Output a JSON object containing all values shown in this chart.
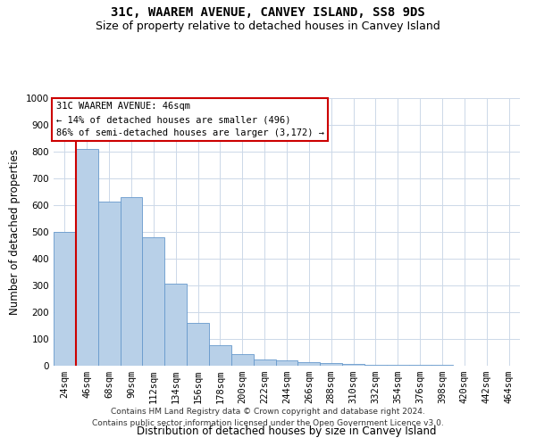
{
  "title": "31C, WAAREM AVENUE, CANVEY ISLAND, SS8 9DS",
  "subtitle": "Size of property relative to detached houses in Canvey Island",
  "xlabel": "Distribution of detached houses by size in Canvey Island",
  "ylabel": "Number of detached properties",
  "footer_line1": "Contains HM Land Registry data © Crown copyright and database right 2024.",
  "footer_line2": "Contains public sector information licensed under the Open Government Licence v3.0.",
  "annotation_title": "31C WAAREM AVENUE: 46sqm",
  "annotation_line2": "← 14% of detached houses are smaller (496)",
  "annotation_line3": "86% of semi-detached houses are larger (3,172) →",
  "bar_categories": [
    "24sqm",
    "46sqm",
    "68sqm",
    "90sqm",
    "112sqm",
    "134sqm",
    "156sqm",
    "178sqm",
    "200sqm",
    "222sqm",
    "244sqm",
    "266sqm",
    "288sqm",
    "310sqm",
    "332sqm",
    "354sqm",
    "376sqm",
    "398sqm",
    "420sqm",
    "442sqm",
    "464sqm"
  ],
  "bar_values": [
    500,
    810,
    615,
    630,
    480,
    308,
    160,
    78,
    42,
    22,
    20,
    15,
    10,
    7,
    5,
    4,
    3,
    2,
    1,
    1,
    1
  ],
  "bar_color": "#b8d0e8",
  "bar_edge_color": "#6699cc",
  "vline_color": "#cc0000",
  "vline_x_index": 1,
  "ylim": [
    0,
    1000
  ],
  "yticks": [
    0,
    100,
    200,
    300,
    400,
    500,
    600,
    700,
    800,
    900,
    1000
  ],
  "annotation_box_color": "#ffffff",
  "annotation_box_edge_color": "#cc0000",
  "grid_color": "#ccd8e8",
  "background_color": "#ffffff",
  "title_fontsize": 10,
  "subtitle_fontsize": 9,
  "axis_label_fontsize": 8.5,
  "tick_fontsize": 7.5,
  "annotation_fontsize": 7.5,
  "footer_fontsize": 6.5
}
